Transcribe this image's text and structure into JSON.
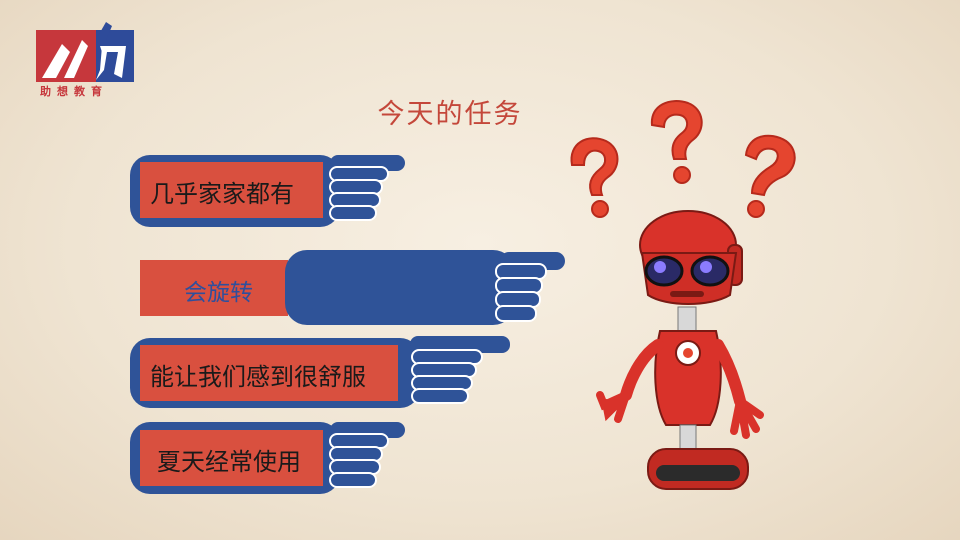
{
  "logo": {
    "text": "助想教育",
    "color": "#c6373c",
    "accent": "#2e4b9a"
  },
  "title": "今天的任务",
  "options": [
    {
      "label": "几乎家家都有"
    },
    {
      "label": "会旋转"
    },
    {
      "label": "能让我们感到很舒服"
    },
    {
      "label": "夏天经常使用"
    }
  ],
  "colors": {
    "hand_blue": "#2f5398",
    "card_red": "#d9503f",
    "title_red": "#c4473a",
    "robot_red": "#d9322a"
  },
  "icons": [
    "logo-icon",
    "pointing-hand-icon",
    "robot-illustration",
    "question-mark-icon"
  ]
}
